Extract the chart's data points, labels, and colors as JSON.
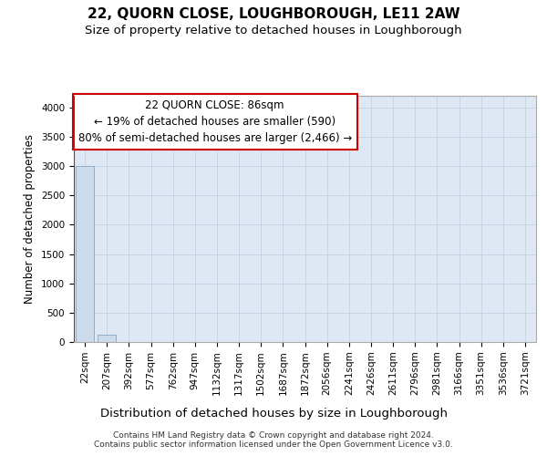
{
  "title": "22, QUORN CLOSE, LOUGHBOROUGH, LE11 2AW",
  "subtitle": "Size of property relative to detached houses in Loughborough",
  "xlabel": "Distribution of detached houses by size in Loughborough",
  "ylabel": "Number of detached properties",
  "footer_line1": "Contains HM Land Registry data © Crown copyright and database right 2024.",
  "footer_line2": "Contains public sector information licensed under the Open Government Licence v3.0.",
  "categories": [
    "22sqm",
    "207sqm",
    "392sqm",
    "577sqm",
    "762sqm",
    "947sqm",
    "1132sqm",
    "1317sqm",
    "1502sqm",
    "1687sqm",
    "1872sqm",
    "2056sqm",
    "2241sqm",
    "2426sqm",
    "2611sqm",
    "2796sqm",
    "2981sqm",
    "3166sqm",
    "3351sqm",
    "3536sqm",
    "3721sqm"
  ],
  "values": [
    3000,
    120,
    0,
    0,
    0,
    0,
    0,
    0,
    0,
    0,
    0,
    0,
    0,
    0,
    0,
    0,
    0,
    0,
    0,
    0,
    0
  ],
  "bar_color": "#cddcec",
  "bar_edge_color": "#8ab0cc",
  "ylim": [
    0,
    4200
  ],
  "yticks": [
    0,
    500,
    1000,
    1500,
    2000,
    2500,
    3000,
    3500,
    4000
  ],
  "annotation_line1": "22 QUORN CLOSE: 86sqm",
  "annotation_line2": "← 19% of detached houses are smaller (590)",
  "annotation_line3": "80% of semi-detached houses are larger (2,466) →",
  "annotation_border_color": "#cc0000",
  "grid_color": "#c8d4e4",
  "bg_color": "#dde8f4",
  "title_fontsize": 11,
  "subtitle_fontsize": 9.5,
  "tick_fontsize": 7.5,
  "ylabel_fontsize": 8.5,
  "xlabel_fontsize": 9.5,
  "annot_fontsize": 8.5
}
